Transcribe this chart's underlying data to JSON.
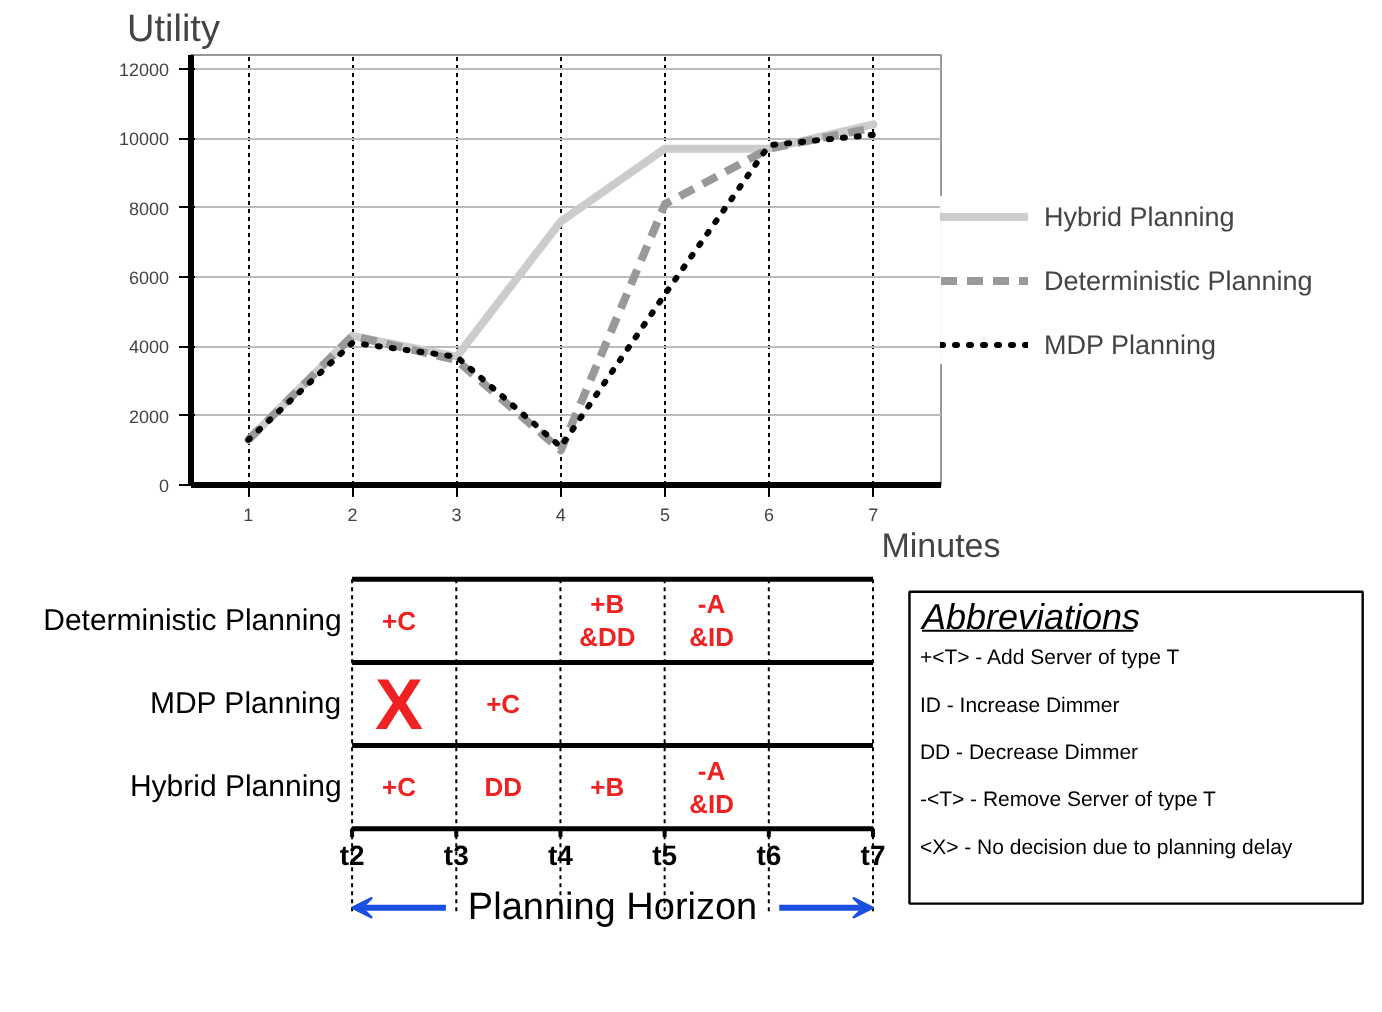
{
  "chart_data": [
    {
      "type": "line",
      "xlabel": "Minutes",
      "ylabel": "Utility",
      "x": [
        1,
        2,
        3,
        4,
        5,
        6,
        7
      ],
      "xlim": [
        0.45,
        7.65
      ],
      "xticks": [
        1,
        2,
        3,
        4,
        5,
        6,
        7
      ],
      "ylim": [
        0,
        12400
      ],
      "yticks": [
        0,
        2000,
        4000,
        6000,
        8000,
        10000,
        12000
      ],
      "grid": true,
      "legend": "right",
      "marker": "none",
      "series": [
        {
          "name": "Hybrid Planning",
          "color": "#cccccc",
          "line_style": "solid",
          "values": [
            1300,
            4300,
            3700,
            7600,
            9700,
            9700,
            10400
          ]
        },
        {
          "name": "Deterministic Planning",
          "color": "#999999",
          "line_style": "dashed",
          "values": [
            1300,
            4300,
            3600,
            1000,
            8100,
            9700,
            10300
          ]
        },
        {
          "name": "MDP Planning",
          "color": "#000000",
          "line_style": "dotted",
          "values": [
            1300,
            4100,
            3700,
            1100,
            5500,
            9800,
            10100
          ]
        }
      ]
    },
    {
      "type": "other",
      "xlabel": "Planning Horizon",
      "categories": [
        "t2",
        "t3",
        "t4",
        "t5",
        "t6",
        "t7"
      ],
      "y_categories": [
        "Deterministic Planning",
        "MDP Planning",
        "Hybrid Planning"
      ],
      "cell_labels": [
        [
          "+C",
          null,
          "+B\n&DD",
          "-A\n&ID",
          null
        ],
        [
          "X",
          "+C",
          null,
          null,
          null
        ],
        [
          "+C",
          "DD",
          "+B",
          "-A\n&ID",
          null
        ]
      ],
      "annotations": [
        "Abbreviations",
        "+<T> - Add Server of type T",
        "ID -  Increase Dimmer",
        "DD - Decrease Dimmer",
        "-<T> - Remove Server of type T",
        "<X> - No decision due to planning delay"
      ]
    }
  ]
}
